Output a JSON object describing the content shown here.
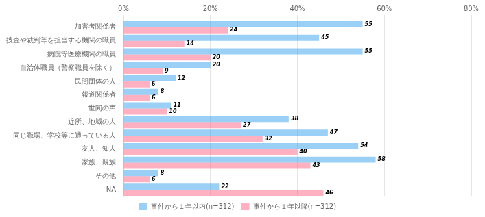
{
  "chart_data": {
    "type": "bar",
    "orientation": "horizontal",
    "categories": [
      "加害者関係者",
      "捜査や裁判等を担当する機関の職員",
      "病院等医療機関の職員",
      "自治体職員（警察職員を除く）",
      "民間団体の人",
      "報道関係者",
      "世間の声",
      "近所、地域の人",
      "同じ職場、学校等に通っている人",
      "友人、知人",
      "家族、親族",
      "その他",
      "NA"
    ],
    "series": [
      {
        "name": "事件から１年以内(n=312)",
        "values": [
          55,
          45,
          55,
          20,
          12,
          8,
          11,
          38,
          47,
          54,
          58,
          8,
          22
        ]
      },
      {
        "name": "事件から１年以降(n=312)",
        "values": [
          24,
          14,
          20,
          9,
          6,
          6,
          10,
          27,
          32,
          40,
          43,
          6,
          46
        ]
      }
    ],
    "xlim": [
      0,
      80
    ],
    "xticks": [
      {
        "value": 0,
        "label": "0%"
      },
      {
        "value": 20,
        "label": "20%"
      },
      {
        "value": 40,
        "label": "40%"
      },
      {
        "value": 60,
        "label": "60%"
      },
      {
        "value": 80,
        "label": "80%"
      }
    ],
    "grid": true,
    "legend": "bottom",
    "data_labels": true
  }
}
